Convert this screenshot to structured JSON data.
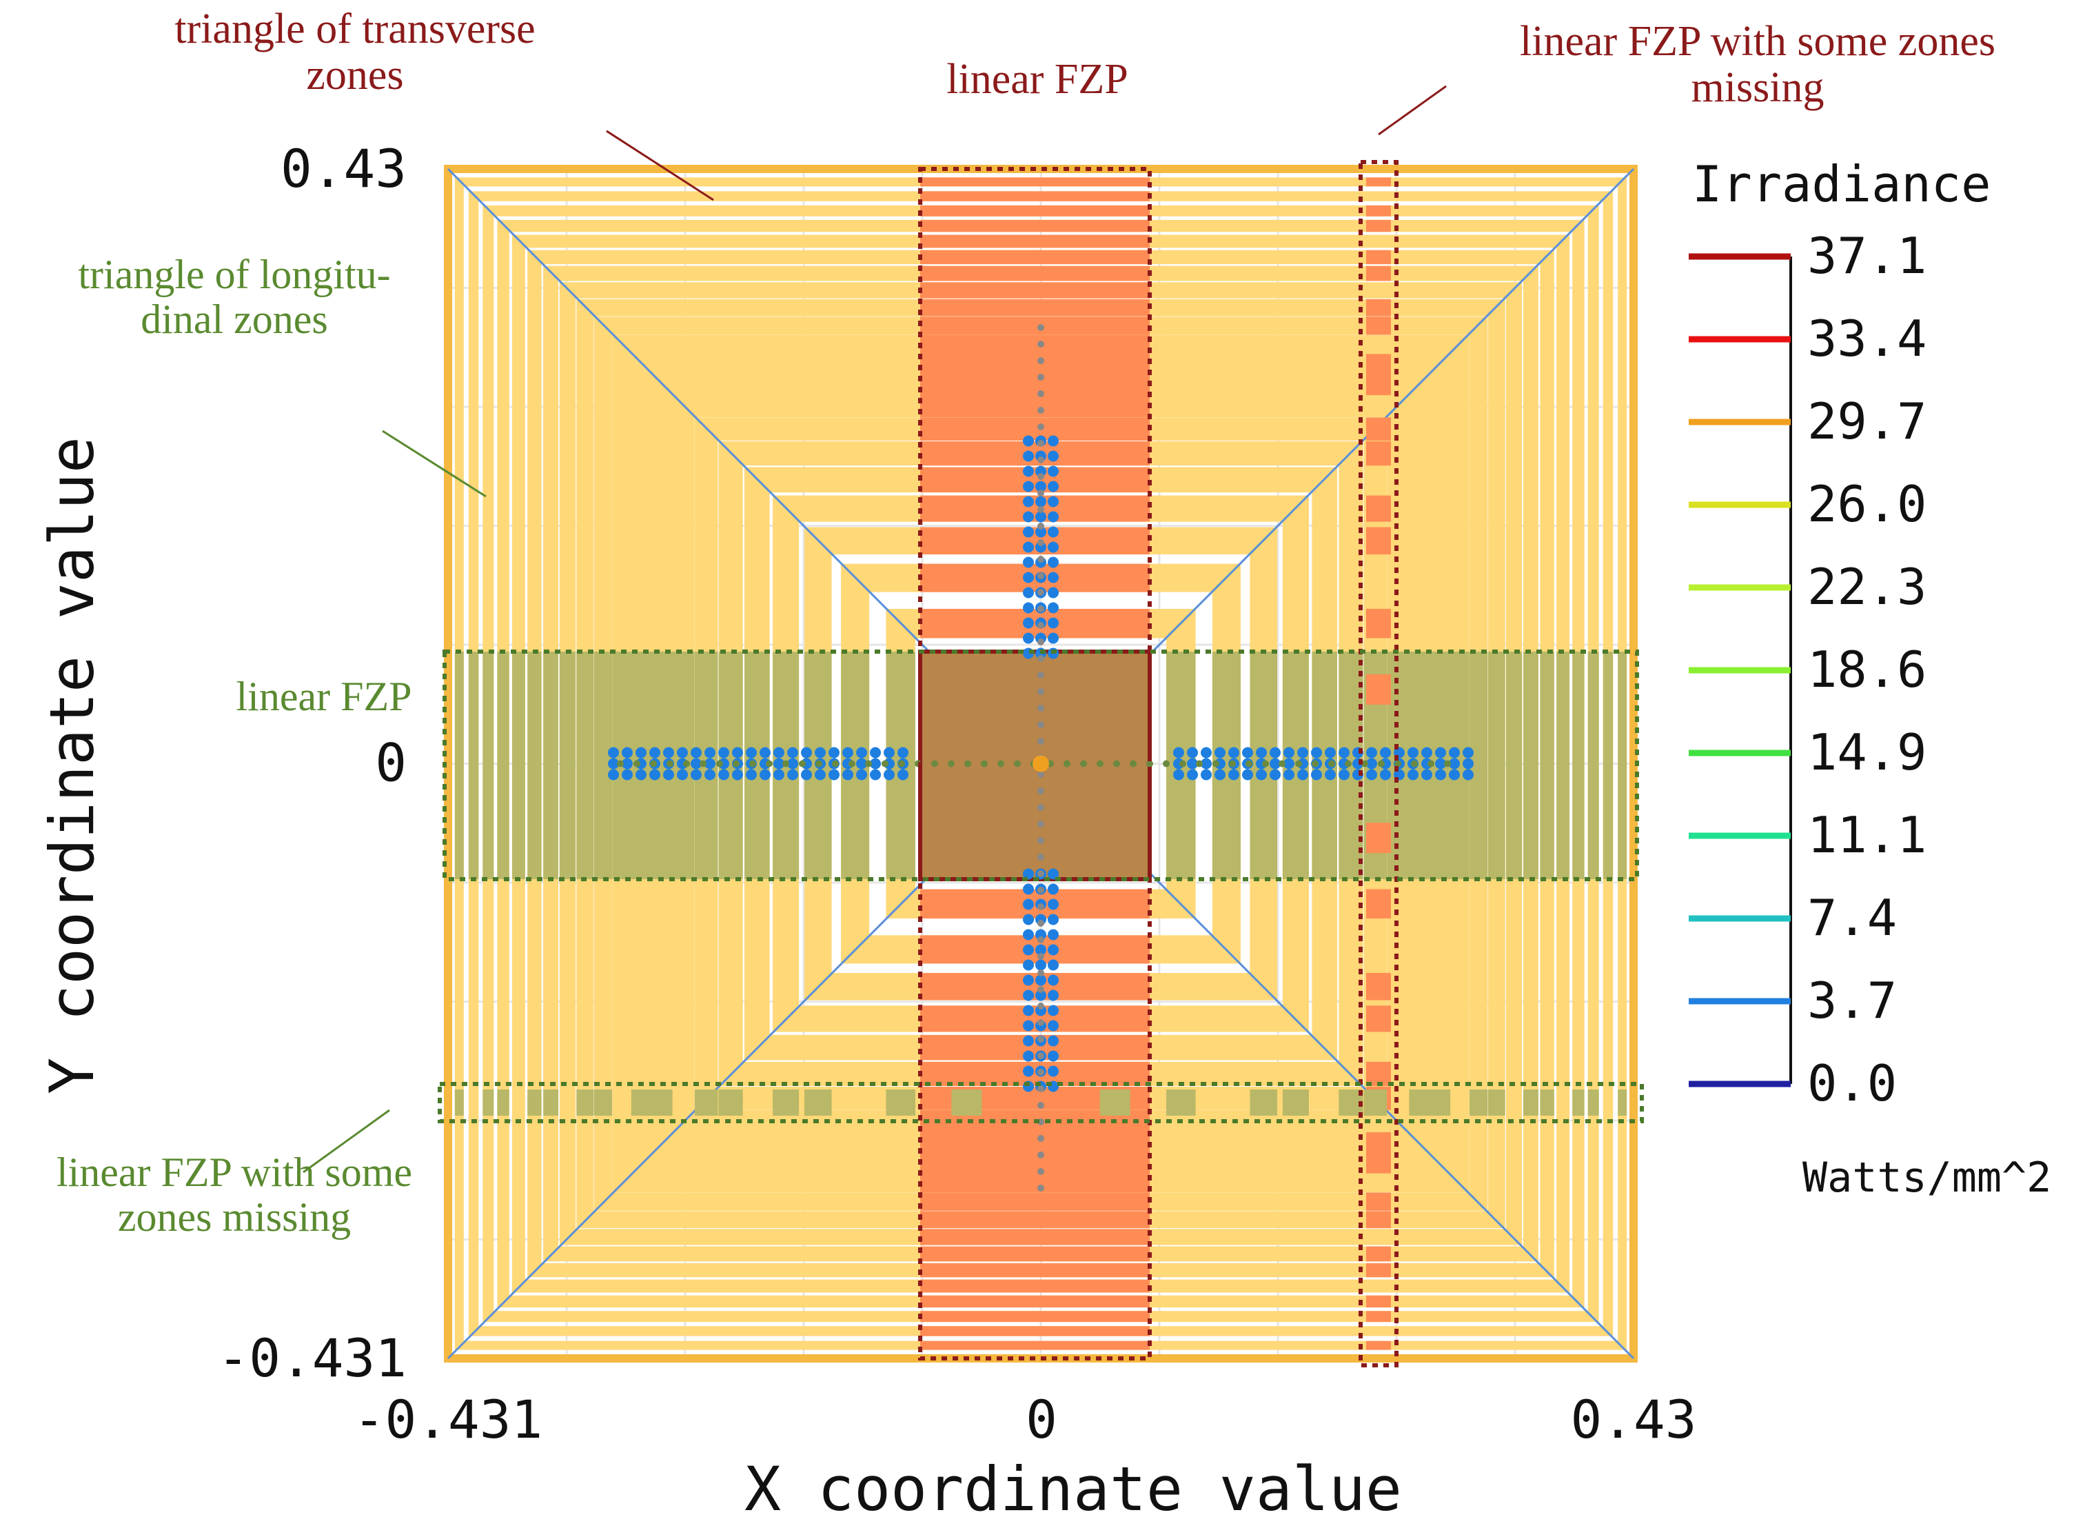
{
  "chart_data": {
    "type": "heatmap",
    "title": "",
    "xlabel": "X coordinate value",
    "ylabel": "Y coordinate value",
    "xlim": [
      -0.431,
      0.43
    ],
    "ylim": [
      -0.431,
      0.43
    ],
    "x_ticks": [
      {
        "value": -0.431,
        "label": "-0.431"
      },
      {
        "value": 0,
        "label": "0"
      },
      {
        "value": 0.43,
        "label": "0.43"
      }
    ],
    "y_ticks": [
      {
        "value": 0.43,
        "label": "0.43"
      },
      {
        "value": 0,
        "label": "0"
      },
      {
        "value": -0.431,
        "label": "-0.431"
      }
    ],
    "colorbar": {
      "title": "Irradiance",
      "unit": "Watts/mm^2",
      "levels": [
        {
          "value": "37.1",
          "color": "#b01010"
        },
        {
          "value": "33.4",
          "color": "#e81010"
        },
        {
          "value": "29.7",
          "color": "#f0a020"
        },
        {
          "value": "26.0",
          "color": "#d8e020"
        },
        {
          "value": "22.3",
          "color": "#b8f030"
        },
        {
          "value": "18.6",
          "color": "#88f030"
        },
        {
          "value": "14.9",
          "color": "#40e040"
        },
        {
          "value": "11.1",
          "color": "#20e090"
        },
        {
          "value": "7.4",
          "color": "#20c0c0"
        },
        {
          "value": "3.7",
          "color": "#2080e0"
        },
        {
          "value": "0.0",
          "color": "#2020a0"
        }
      ]
    },
    "zone_rings": 22,
    "annotations": [
      {
        "id": "transverse",
        "lines": [
          "triangle of transverse",
          "zones"
        ],
        "color": "#8b1a1a"
      },
      {
        "id": "top-linear",
        "lines": [
          "linear FZP"
        ],
        "color": "#8b1a1a"
      },
      {
        "id": "top-missing",
        "lines": [
          "linear FZP with some zones",
          "missing"
        ],
        "color": "#8b1a1a"
      },
      {
        "id": "longitudinal",
        "lines": [
          "triangle of longitu-",
          "dinal zones"
        ],
        "color": "#5a8a30"
      },
      {
        "id": "left-linear",
        "lines": [
          "linear FZP"
        ],
        "color": "#5a8a30"
      },
      {
        "id": "left-missing",
        "lines": [
          "linear FZP with some",
          "zones missing"
        ],
        "color": "#5a8a30"
      }
    ]
  },
  "colors": {
    "zone": "#ffd878",
    "zone_edge": "#f5b840",
    "vertical_fzp": "#ff8c55",
    "horizontal_fzp": "#b9b868",
    "center": "#b8854a",
    "red_dots": "#8b1a1a",
    "green_dots": "#4a7a2a",
    "diagonal": "#5b8fd8",
    "spot": "#1f7fe0"
  }
}
